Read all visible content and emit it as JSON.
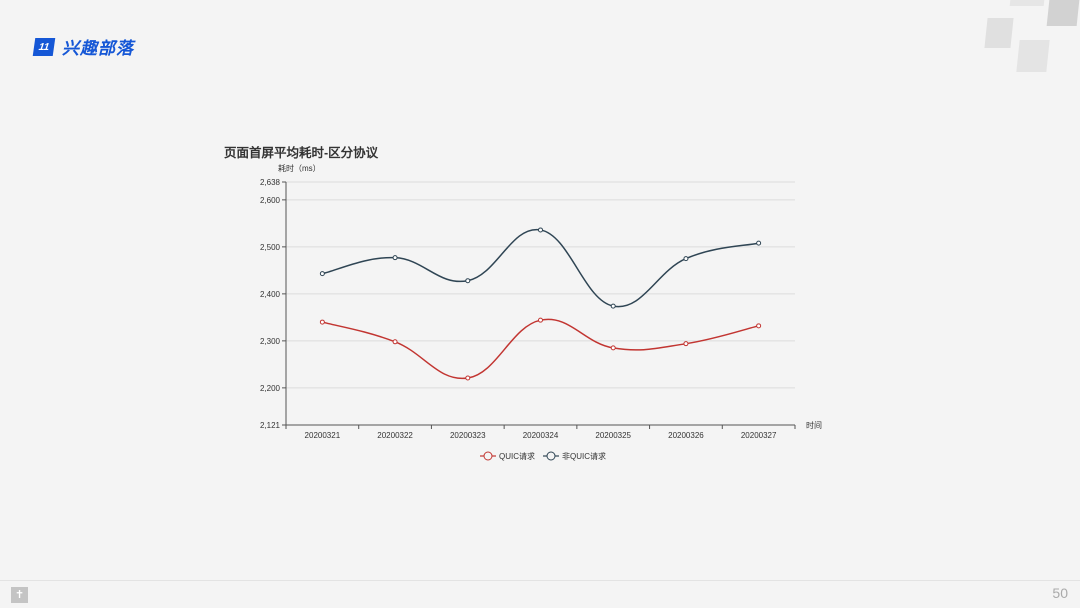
{
  "header": {
    "badge": "11",
    "brand": "兴趣部落"
  },
  "footer": {
    "page_number": "50",
    "icon": "book-icon"
  },
  "chart_data": {
    "type": "line",
    "smooth": true,
    "title": "页面首屏平均耗时-区分协议",
    "ylabel": "耗时（ms）",
    "xlabel": "时间",
    "categories": [
      "20200321",
      "20200322",
      "20200323",
      "20200324",
      "20200325",
      "20200326",
      "20200327"
    ],
    "ylim": [
      2121,
      2638
    ],
    "yticks": [
      "2,121",
      "2,200",
      "2,300",
      "2,400",
      "2,500",
      "2,600",
      "2,638"
    ],
    "ytick_values": [
      2121,
      2200,
      2300,
      2400,
      2500,
      2600,
      2638
    ],
    "grid": true,
    "legend": "bottom-center",
    "series": [
      {
        "name": "QUIC请求",
        "color": "#c23531",
        "values": [
          2340,
          2298,
          2221,
          2344,
          2285,
          2294,
          2332
        ]
      },
      {
        "name": "非QUIC请求",
        "color": "#2f4554",
        "values": [
          2443,
          2477,
          2428,
          2536,
          2374,
          2475,
          2508
        ]
      }
    ]
  }
}
